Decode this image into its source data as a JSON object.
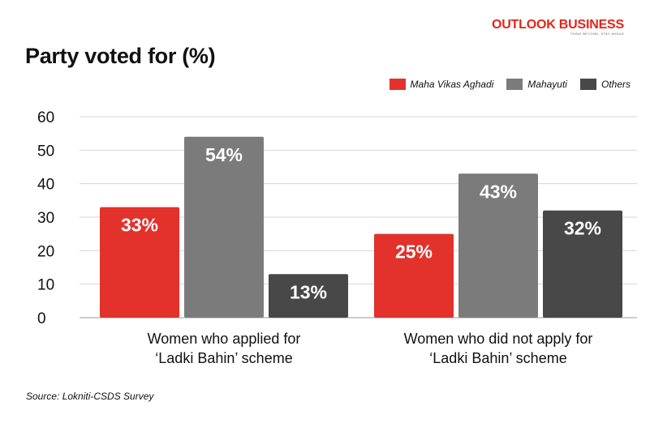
{
  "brand": {
    "name": "OUTLOOK BUSINESS",
    "tagline": "THINK BEYOND. STAY AHEAD"
  },
  "source": "Source: Lokniti-CSDS Survey",
  "colors": {
    "Maha Vikas Aghadi": "#e3312b",
    "Mahayuti": "#7b7b7b",
    "Others": "#484848",
    "brand": "#e1251b"
  },
  "chart_data": {
    "type": "bar",
    "title": "Party voted for (%)",
    "xlabel": "",
    "ylabel": "",
    "ylim": [
      0,
      60
    ],
    "yticks": [
      0,
      10,
      20,
      30,
      40,
      50,
      60
    ],
    "grid": true,
    "legend_position": "top-right",
    "categories": [
      [
        "Women who applied for",
        "‘Ladki Bahin’ scheme"
      ],
      [
        "Women who did not apply for",
        "‘Ladki Bahin’ scheme"
      ]
    ],
    "series": [
      {
        "name": "Maha Vikas Aghadi",
        "values": [
          33,
          25
        ],
        "labels": [
          "33%",
          "25%"
        ]
      },
      {
        "name": "Mahayuti",
        "values": [
          54,
          43
        ],
        "labels": [
          "54%",
          "43%"
        ]
      },
      {
        "name": "Others",
        "values": [
          13,
          32
        ],
        "labels": [
          "13%",
          "32%"
        ]
      }
    ]
  }
}
